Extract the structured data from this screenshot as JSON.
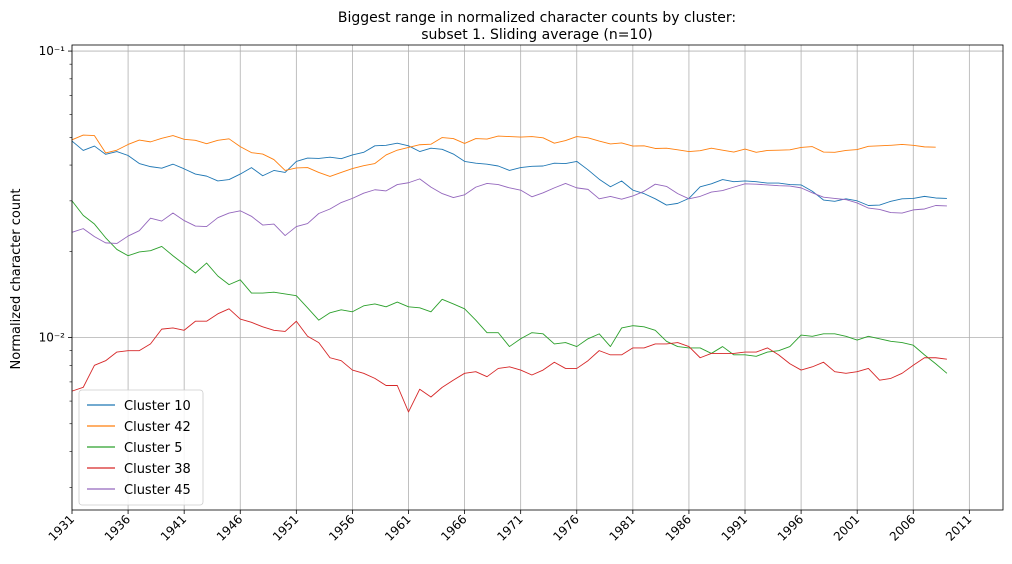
{
  "chart_data": {
    "type": "line",
    "title": "Biggest range in normalized character counts by cluster:",
    "subtitle": "subset 1. Sliding average (n=10)",
    "xlabel": "",
    "ylabel": "Normalized character count",
    "yscale": "log",
    "xlim": [
      1931,
      2014
    ],
    "ylim": [
      0.0025,
      0.105
    ],
    "x_ticks": [
      1931,
      1936,
      1941,
      1946,
      1951,
      1956,
      1961,
      1966,
      1971,
      1976,
      1981,
      1986,
      1991,
      1996,
      2001,
      2006,
      2011
    ],
    "x_tick_labels": [
      "1931",
      "1936",
      "1941",
      "1946",
      "1951",
      "1956",
      "1961",
      "1966",
      "1971",
      "1976",
      "1981",
      "1986",
      "1991",
      "1996",
      "2001",
      "2006",
      "2011"
    ],
    "y_ticks": [
      0.1,
      0.01
    ],
    "y_tick_labels": [
      "10⁻¹",
      "10⁻²"
    ],
    "grid": true,
    "legend_position": "lower-left",
    "x_start": 1931,
    "series": [
      {
        "name": "Cluster 10",
        "color": "#1f77b4",
        "values": [
          0.0485,
          0.045,
          0.0466,
          0.0436,
          0.0446,
          0.0432,
          0.0405,
          0.0395,
          0.039,
          0.0403,
          0.0388,
          0.0372,
          0.0366,
          0.0352,
          0.0356,
          0.0372,
          0.0392,
          0.0367,
          0.0383,
          0.0377,
          0.0412,
          0.0423,
          0.0422,
          0.0426,
          0.0421,
          0.0434,
          0.0443,
          0.0467,
          0.0469,
          0.0477,
          0.0467,
          0.0446,
          0.0458,
          0.0454,
          0.0437,
          0.0412,
          0.0406,
          0.0403,
          0.0397,
          0.0383,
          0.0392,
          0.0396,
          0.0397,
          0.0406,
          0.0405,
          0.0412,
          0.0385,
          0.0357,
          0.0336,
          0.0352,
          0.0327,
          0.0318,
          0.0305,
          0.029,
          0.0294,
          0.0306,
          0.0336,
          0.0344,
          0.0356,
          0.035,
          0.0352,
          0.035,
          0.0346,
          0.0346,
          0.0342,
          0.0341,
          0.0324,
          0.0302,
          0.0299,
          0.0305,
          0.03,
          0.0289,
          0.029,
          0.0299,
          0.0305,
          0.0306,
          0.0311,
          0.0307,
          0.0306
        ]
      },
      {
        "name": "Cluster 42",
        "color": "#ff7f0e",
        "values": [
          0.049,
          0.0509,
          0.0507,
          0.0441,
          0.0451,
          0.0472,
          0.0489,
          0.0482,
          0.0496,
          0.0507,
          0.0492,
          0.0488,
          0.0475,
          0.0488,
          0.0494,
          0.0464,
          0.0442,
          0.0437,
          0.0418,
          0.0383,
          0.0391,
          0.0392,
          0.0377,
          0.0365,
          0.0377,
          0.0389,
          0.0398,
          0.0405,
          0.0434,
          0.0451,
          0.0461,
          0.0471,
          0.0473,
          0.0499,
          0.0495,
          0.0476,
          0.0495,
          0.0493,
          0.0505,
          0.0503,
          0.0501,
          0.0503,
          0.0498,
          0.0477,
          0.0487,
          0.0503,
          0.0498,
          0.0485,
          0.0474,
          0.0478,
          0.0466,
          0.0467,
          0.0457,
          0.0458,
          0.0452,
          0.0446,
          0.0449,
          0.0458,
          0.0451,
          0.0444,
          0.0455,
          0.0443,
          0.045,
          0.0451,
          0.0452,
          0.0461,
          0.0464,
          0.0444,
          0.0443,
          0.045,
          0.0453,
          0.0465,
          0.0467,
          0.0469,
          0.0472,
          0.0469,
          0.0463,
          0.0462
        ]
      },
      {
        "name": "Cluster 5",
        "color": "#2ca02c",
        "values": [
          0.03,
          0.0267,
          0.0249,
          0.0223,
          0.0203,
          0.0193,
          0.0199,
          0.0201,
          0.0208,
          0.0193,
          0.018,
          0.0168,
          0.0182,
          0.0164,
          0.0153,
          0.0159,
          0.0143,
          0.0143,
          0.0144,
          0.0142,
          0.014,
          0.0127,
          0.0115,
          0.0122,
          0.0125,
          0.0123,
          0.0129,
          0.0131,
          0.0128,
          0.0133,
          0.0128,
          0.0127,
          0.0123,
          0.0136,
          0.0131,
          0.0126,
          0.0115,
          0.0104,
          0.0104,
          0.0093,
          0.0099,
          0.0104,
          0.0103,
          0.0095,
          0.0096,
          0.0093,
          0.0099,
          0.0103,
          0.0093,
          0.0108,
          0.011,
          0.0109,
          0.0106,
          0.0097,
          0.0093,
          0.0092,
          0.0092,
          0.0088,
          0.0093,
          0.0087,
          0.0087,
          0.0086,
          0.0089,
          0.009,
          0.0093,
          0.0102,
          0.0101,
          0.0103,
          0.0103,
          0.0101,
          0.0098,
          0.0101,
          0.0099,
          0.0097,
          0.0096,
          0.0094,
          0.0087,
          0.0081,
          0.0075
        ]
      },
      {
        "name": "Cluster 38",
        "color": "#d62728",
        "values": [
          0.0065,
          0.0067,
          0.008,
          0.0083,
          0.0089,
          0.009,
          0.009,
          0.0095,
          0.0107,
          0.0108,
          0.0106,
          0.0114,
          0.0114,
          0.0121,
          0.0126,
          0.0116,
          0.0113,
          0.0109,
          0.0106,
          0.0105,
          0.0114,
          0.0101,
          0.0096,
          0.0085,
          0.0083,
          0.0077,
          0.0075,
          0.0072,
          0.0068,
          0.0068,
          0.0055,
          0.0066,
          0.0062,
          0.0067,
          0.0071,
          0.0075,
          0.0076,
          0.0073,
          0.0078,
          0.0079,
          0.0077,
          0.0074,
          0.0077,
          0.0082,
          0.0078,
          0.0078,
          0.0083,
          0.009,
          0.0087,
          0.0087,
          0.0092,
          0.0092,
          0.0095,
          0.0095,
          0.0096,
          0.0093,
          0.0085,
          0.0088,
          0.0088,
          0.0088,
          0.0089,
          0.0089,
          0.0092,
          0.0087,
          0.0081,
          0.0077,
          0.0079,
          0.0082,
          0.0076,
          0.0075,
          0.0076,
          0.0078,
          0.0071,
          0.0072,
          0.0075,
          0.008,
          0.0085,
          0.0085,
          0.0084
        ]
      },
      {
        "name": "Cluster 45",
        "color": "#9467bd",
        "values": [
          0.0233,
          0.024,
          0.0225,
          0.0214,
          0.0213,
          0.0226,
          0.0236,
          0.0261,
          0.0255,
          0.0272,
          0.0256,
          0.0245,
          0.0244,
          0.0262,
          0.0272,
          0.0277,
          0.0265,
          0.0247,
          0.0249,
          0.0227,
          0.0244,
          0.025,
          0.0271,
          0.0281,
          0.0296,
          0.0306,
          0.0319,
          0.0328,
          0.0325,
          0.0342,
          0.0347,
          0.0358,
          0.0335,
          0.0318,
          0.0308,
          0.0315,
          0.0335,
          0.0345,
          0.0342,
          0.0333,
          0.0327,
          0.031,
          0.032,
          0.0333,
          0.0345,
          0.0333,
          0.0329,
          0.0305,
          0.0311,
          0.0304,
          0.0312,
          0.0324,
          0.0343,
          0.0337,
          0.0318,
          0.0305,
          0.0311,
          0.0322,
          0.0326,
          0.0335,
          0.0344,
          0.0343,
          0.0341,
          0.0339,
          0.0338,
          0.0333,
          0.032,
          0.0309,
          0.0306,
          0.0303,
          0.0295,
          0.0283,
          0.028,
          0.0273,
          0.0272,
          0.0279,
          0.0281,
          0.0289,
          0.0288
        ]
      }
    ]
  }
}
